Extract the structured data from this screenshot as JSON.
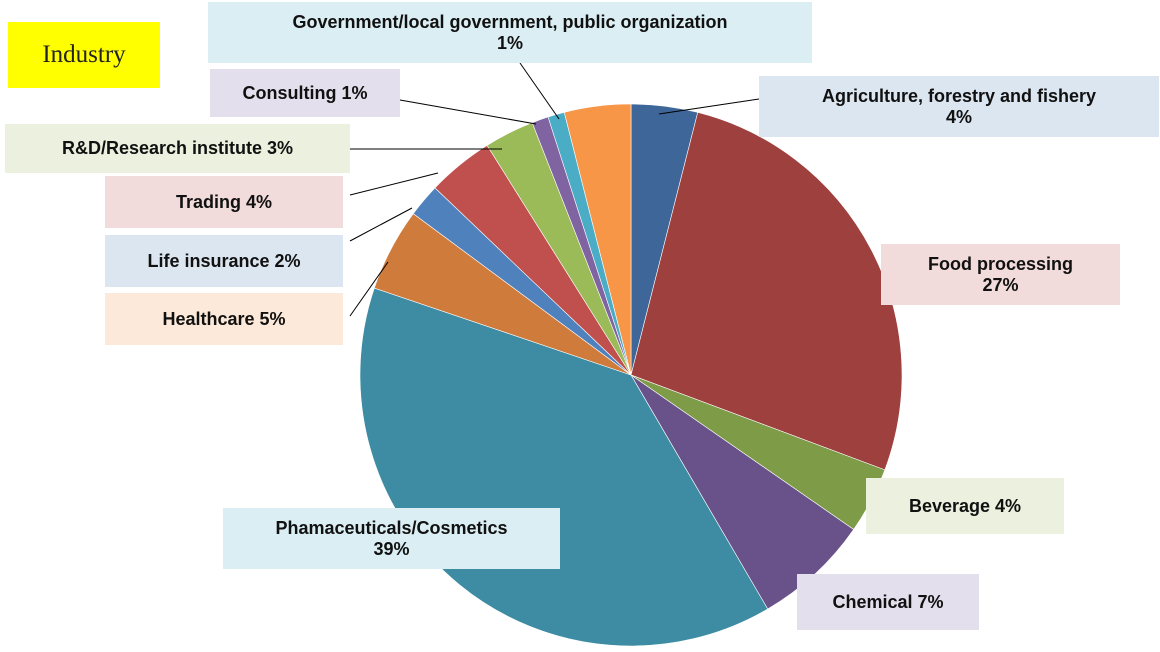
{
  "chart_data": {
    "type": "pie",
    "title": "Industry",
    "start_angle_deg": 0,
    "direction": "clockwise",
    "slices": [
      {
        "label": "Agriculture, forestry and fishery",
        "value": 4,
        "display": "4%",
        "color": "#3f6698"
      },
      {
        "label": "Food processing",
        "value": 27,
        "display": "27%",
        "color": "#9e403e"
      },
      {
        "label": "Beverage",
        "value": 4,
        "display": "4%",
        "color": "#7e9b47"
      },
      {
        "label": "Chemical",
        "value": 7,
        "display": "7%",
        "color": "#69528a"
      },
      {
        "label": "Phamaceuticals/Cosmetics",
        "value": 39,
        "display": "39%",
        "color": "#3d8ca3"
      },
      {
        "label": "Healthcare",
        "value": 5,
        "display": "5%",
        "color": "#cf7b3c"
      },
      {
        "label": "Life insurance",
        "value": 2,
        "display": "2%",
        "color": "#4f81bd"
      },
      {
        "label": "Trading",
        "value": 4,
        "display": "4%",
        "color": "#c0504d"
      },
      {
        "label": "R&D/Research institute",
        "value": 3,
        "display": "3%",
        "color": "#9bbb59"
      },
      {
        "label": "Consulting",
        "value": 1,
        "display": "1%",
        "color": "#8064a2"
      },
      {
        "label": "Government/local government, public organization",
        "value": 1,
        "display": "1%",
        "color": "#4bacc6"
      },
      {
        "label": "",
        "value": 4,
        "display": "",
        "color": "#f79646"
      }
    ],
    "label_text": [
      "Agriculture, forestry and fishery\n4%",
      "Food processing\n27%",
      "Beverage 4%",
      "Chemical 7%",
      "Phamaceuticals/Cosmetics\n39%",
      "Healthcare 5%",
      "Life insurance 2%",
      "Trading 4%",
      "R&D/Research institute 3%",
      "Consulting 1%",
      "Government/local government, public organization\n1%"
    ],
    "label_colors": [
      "#dce6f1",
      "#f2dcdb",
      "#ebf1de",
      "#e4dfec",
      "#daeef3",
      "#fde9d9",
      "#dce6f1",
      "#f2dcdb",
      "#ebf1de",
      "#e4dfec",
      "#daeef3"
    ]
  }
}
